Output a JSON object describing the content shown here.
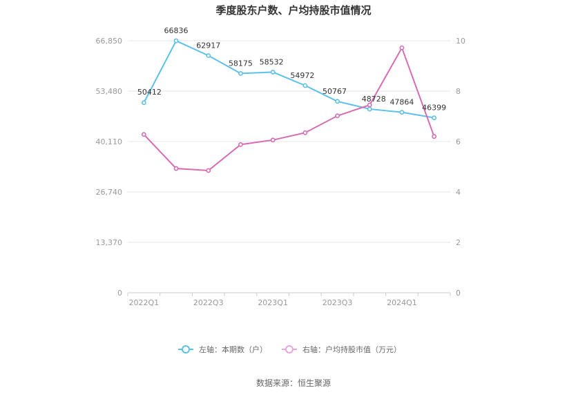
{
  "chart_data": {
    "type": "line",
    "title": "季度股东户数、户均持股市值情况",
    "categories": [
      "2022Q1",
      "2022Q2",
      "2022Q3",
      "2022Q4",
      "2023Q1",
      "2023Q2",
      "2023Q3",
      "2023Q4",
      "2024Q1",
      "2024Q2"
    ],
    "x_tick_labels": [
      "2022Q1",
      "2022Q3",
      "2023Q1",
      "2023Q3",
      "2024Q1"
    ],
    "y_left": {
      "min": 0,
      "max": 66850,
      "ticks": [
        0,
        13370,
        26740,
        40110,
        53480,
        66850
      ],
      "tick_labels": [
        "0",
        "13,370",
        "26,740",
        "40,110",
        "53,480",
        "66,850"
      ]
    },
    "y_right": {
      "min": 0,
      "max": 10,
      "ticks": [
        0,
        2,
        4,
        6,
        8,
        10
      ],
      "tick_labels": [
        "0",
        "2",
        "4",
        "6",
        "8",
        "10"
      ]
    },
    "series": [
      {
        "name": "左轴：本期数（户）",
        "axis": "left",
        "color": "#5bc0eb",
        "values": [
          50412,
          66836,
          62917,
          58175,
          58532,
          54972,
          50767,
          48728,
          47864,
          46399
        ],
        "labels": [
          "50412",
          "66836",
          "62917",
          "58175",
          "58532",
          "54972",
          "50767",
          "48728",
          "47864",
          "46399"
        ]
      },
      {
        "name": "右轴：户均持股市值（万元）",
        "axis": "right",
        "color": "#d66bb3",
        "values": [
          6.28,
          4.93,
          4.85,
          5.88,
          6.06,
          6.35,
          7.02,
          7.45,
          9.72,
          6.2
        ]
      }
    ],
    "grid": true,
    "legend_position": "bottom"
  },
  "source": "数据来源：恒生聚源"
}
